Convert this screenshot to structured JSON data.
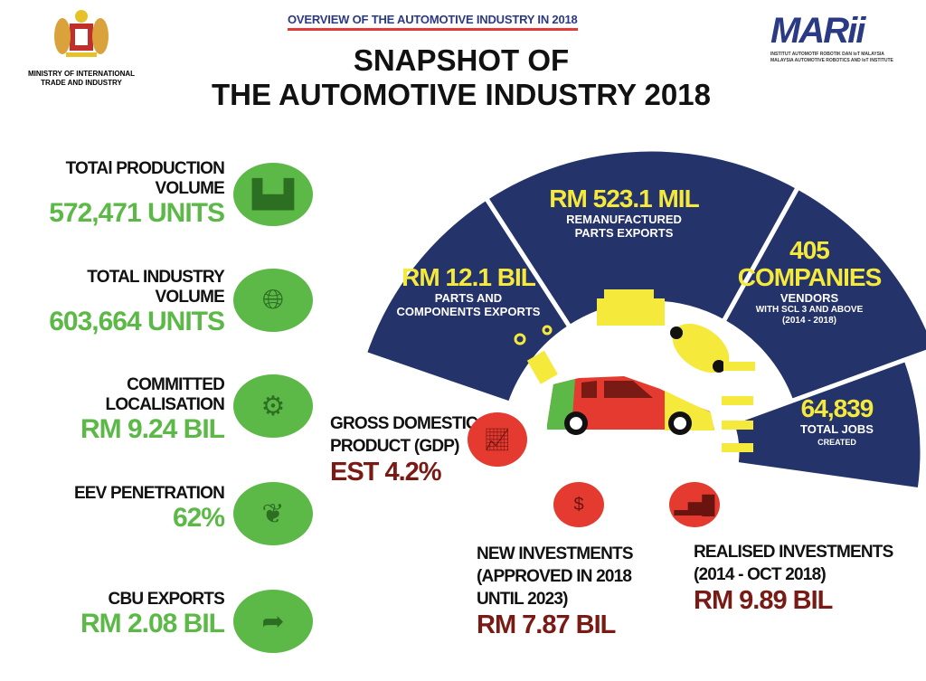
{
  "header": {
    "overview": "OVERVIEW OF THE AUTOMOTIVE INDUSTRY IN 2018",
    "title_line1": "SNAPSHOT OF",
    "title_line2": "THE AUTOMOTIVE INDUSTRY 2018",
    "ministry": "MINISTRY OF INTERNATIONAL TRADE AND INDUSTRY",
    "mari_logo": "MARii",
    "mari_sub1": "INSTITUT AUTOMOTIF ROBOTIK DAN IoT MALAYSIA",
    "mari_sub2": "MALAYSIA AUTOMOTIVE ROBOTICS AND IoT INSTITUTE"
  },
  "stats": [
    {
      "label": "TOTAl PRODUCTION VOLUME",
      "value": "572,471 UNITS",
      "icon": "factory-icon"
    },
    {
      "label": "TOTAL INDUSTRY VOLUME",
      "value": "603,664 UNITS",
      "icon": "globe-icon"
    },
    {
      "label": "COMMITTED LOCALISATION",
      "value": "RM 9.24 BIL",
      "icon": "robot-arm-icon"
    },
    {
      "label": "EEV PENETRATION",
      "value": "62%",
      "icon": "leaf-icon"
    },
    {
      "label": "CBU EXPORTS",
      "value": "RM 2.08 BIL",
      "icon": "share-arrow-icon"
    }
  ],
  "fan": {
    "parts": {
      "value": "RM 12.1 BIL",
      "label1": "PARTS AND",
      "label2": "COMPONENTS EXPORTS"
    },
    "reman": {
      "value": "RM 523.1 MIL",
      "label1": "REMANUFACTURED",
      "label2": "PARTS EXPORTS"
    },
    "vendors": {
      "value": "405",
      "value2": "COMPANIES",
      "label1": "VENDORS",
      "label2": "WITH SCL 3 AND ABOVE",
      "label3": "(2014 - 2018)"
    },
    "jobs": {
      "value": "64,839",
      "label1": "TOTAL JOBS",
      "label2": "CREATED"
    }
  },
  "gdp": {
    "label1": "GROSS DOMESTIC",
    "label2": "PRODUCT (GDP)",
    "value": "EST 4.2%"
  },
  "new_inv": {
    "label1": "NEW INVESTMENTS",
    "label2": "(APPROVED IN 2018",
    "label3": "UNTIL 2023)",
    "value": "RM 7.87 BIL"
  },
  "real_inv": {
    "label1": "REALISED INVESTMENTS",
    "label2": "(2014 - OCT 2018)",
    "value": "RM 9.89 BIL"
  },
  "colors": {
    "navy": "#24336a",
    "green": "#5cb947",
    "red": "#e43a2f",
    "yellow": "#f5e93c",
    "maroon": "#7a1a14"
  }
}
